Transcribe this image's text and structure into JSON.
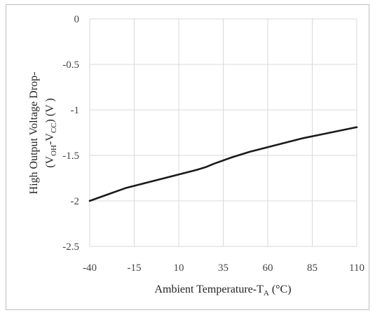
{
  "chart_data": {
    "type": "line",
    "title": "",
    "xlabel": {
      "prefix": "Ambient Temperature-T",
      "subscript": "A",
      "suffix": " (°C)"
    },
    "ylabel": {
      "line1": "High Output  Voltage Drop-",
      "line2_parts": [
        "(V",
        "OH",
        "-V",
        "CC",
        ") (V )"
      ]
    },
    "x_ticks": [
      "-40",
      "-15",
      "10",
      "35",
      "60",
      "85",
      "110"
    ],
    "y_ticks": [
      "0",
      "-0.5",
      "-1",
      "-1.5",
      "-2",
      "-2.5"
    ],
    "xlim": [
      -40,
      110
    ],
    "ylim": [
      -2.5,
      0
    ],
    "grid": true,
    "series": [
      {
        "x": [
          -40,
          -30,
          -20,
          -10,
          0,
          10,
          20,
          25,
          30,
          40,
          50,
          60,
          70,
          80,
          90,
          100,
          110
        ],
        "y": [
          -2.0,
          -1.93,
          -1.86,
          -1.81,
          -1.76,
          -1.71,
          -1.66,
          -1.63,
          -1.59,
          -1.52,
          -1.46,
          -1.41,
          -1.36,
          -1.31,
          -1.27,
          -1.23,
          -1.19
        ]
      }
    ],
    "colors": {
      "line": "#1a1a1a",
      "grid": "#d9d9d9"
    }
  }
}
